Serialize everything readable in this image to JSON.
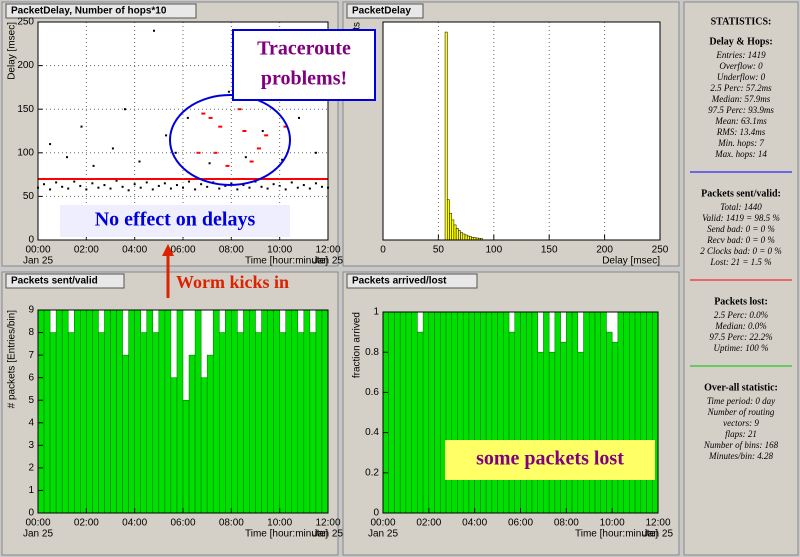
{
  "chart_data": [
    {
      "type": "scatter",
      "title": "PacketDelay, Number of hops*10",
      "x_label": "Time [hour:minute]",
      "y_label": "Delay [msec]",
      "date_label": "Jan 25",
      "xlim": [
        0,
        12
      ],
      "ylim": [
        0,
        250
      ],
      "grid": true,
      "xticks": [
        {
          "value": 0,
          "label": "00:00"
        },
        {
          "value": 2,
          "label": "02:00"
        },
        {
          "value": 4,
          "label": "04:00"
        },
        {
          "value": 6,
          "label": "06:00"
        },
        {
          "value": 8,
          "label": "08:00"
        },
        {
          "value": 10,
          "label": "10:00"
        },
        {
          "value": 12,
          "label": "12:00"
        }
      ],
      "yticks": [
        0,
        50,
        100,
        150,
        200,
        250
      ],
      "series": [
        {
          "style": "points",
          "color": "#000000",
          "x": [
            0,
            0.25,
            0.5,
            0.75,
            1,
            1.25,
            1.5,
            1.75,
            2,
            2.25,
            2.5,
            2.75,
            3,
            3.25,
            3.5,
            3.75,
            4,
            4.25,
            4.5,
            4.75,
            5,
            5.25,
            5.5,
            5.75,
            6,
            6.25,
            6.5,
            6.75,
            7,
            7.25,
            7.5,
            7.75,
            8,
            8.25,
            8.5,
            8.75,
            9,
            9.25,
            9.5,
            9.75,
            10,
            10.25,
            10.5,
            10.75,
            11,
            11.25,
            11.5,
            11.75,
            12,
            0.5,
            1.2,
            1.8,
            2.3,
            3.1,
            3.6,
            4.2,
            4.8,
            5.3,
            5.7,
            6.2,
            7.1,
            7.9,
            8.6,
            9.3,
            10.1,
            10.8,
            11.5
          ],
          "values": [
            60,
            64,
            58,
            66,
            61,
            59,
            67,
            62,
            58,
            65,
            60,
            63,
            59,
            68,
            61,
            57,
            64,
            60,
            66,
            58,
            62,
            65,
            59,
            63,
            60,
            67,
            58,
            64,
            61,
            66,
            59,
            62,
            65,
            58,
            63,
            60,
            67,
            61,
            59,
            64,
            62,
            58,
            66,
            60,
            63,
            59,
            65,
            61,
            60,
            110,
            95,
            130,
            85,
            105,
            150,
            90,
            240,
            120,
            100,
            140,
            88,
            170,
            95,
            125,
            92,
            140,
            100
          ]
        },
        {
          "style": "line",
          "color": "#ff0000",
          "x": [
            0,
            12
          ],
          "values": [
            70,
            70
          ]
        },
        {
          "style": "points",
          "color": "#ff0000",
          "x": [
            6.6,
            6.8,
            7.1,
            7.3,
            7.5,
            7.8,
            8.3,
            8.5,
            8.8,
            9.1,
            9.4,
            10.2
          ],
          "values": [
            100,
            145,
            140,
            100,
            130,
            85,
            150,
            125,
            90,
            105,
            120,
            130
          ]
        }
      ]
    },
    {
      "type": "histogram",
      "title": "PacketDelay",
      "x_label": "Delay [msec]",
      "y_label": "# packets",
      "xlim": [
        0,
        250
      ],
      "ylim": [
        0,
        650
      ],
      "grid": true,
      "color": "#ffff00",
      "xticks": [
        0,
        50,
        100,
        150,
        200,
        250
      ],
      "bins": [
        50,
        52,
        54,
        56,
        58,
        60,
        62,
        64,
        66,
        68,
        70,
        72,
        74,
        76,
        78,
        80,
        82,
        84,
        86,
        88,
        90
      ],
      "values": [
        0,
        0,
        0,
        620,
        120,
        80,
        60,
        45,
        35,
        28,
        22,
        18,
        15,
        12,
        10,
        8,
        7,
        6,
        5,
        4
      ]
    },
    {
      "type": "histogram",
      "title": "Packets sent/valid",
      "x_label": "Time [hour:minute]",
      "y_label": "# packets [Entries/bin]",
      "date_label": "Jan 25",
      "xlim": [
        0,
        12
      ],
      "ylim": [
        0,
        9
      ],
      "grid": false,
      "color": "#00e000",
      "xticks": [
        {
          "value": 0,
          "label": "00:00"
        },
        {
          "value": 2,
          "label": "02:00"
        },
        {
          "value": 4,
          "label": "04:00"
        },
        {
          "value": 6,
          "label": "06:00"
        },
        {
          "value": 8,
          "label": "08:00"
        },
        {
          "value": 10,
          "label": "10:00"
        },
        {
          "value": 12,
          "label": "12:00"
        }
      ],
      "yticks": [
        0,
        1,
        2,
        3,
        4,
        5,
        6,
        7,
        8,
        9
      ],
      "bins": [
        0,
        0.25,
        0.5,
        0.75,
        1,
        1.25,
        1.5,
        1.75,
        2,
        2.25,
        2.5,
        2.75,
        3,
        3.25,
        3.5,
        3.75,
        4,
        4.25,
        4.5,
        4.75,
        5,
        5.25,
        5.5,
        5.75,
        6,
        6.25,
        6.5,
        6.75,
        7,
        7.25,
        7.5,
        7.75,
        8,
        8.25,
        8.5,
        8.75,
        9,
        9.25,
        9.5,
        9.75,
        10,
        10.25,
        10.5,
        10.75,
        11,
        11.25,
        11.5,
        11.75,
        12
      ],
      "values": [
        9,
        9,
        8,
        9,
        9,
        8,
        9,
        9,
        9,
        9,
        8,
        9,
        9,
        9,
        7,
        9,
        9,
        8,
        9,
        8,
        9,
        9,
        6,
        9,
        5,
        7,
        9,
        6,
        7,
        9,
        8,
        9,
        9,
        8,
        9,
        9,
        8,
        9,
        9,
        9,
        8,
        9,
        9,
        8,
        9,
        8,
        9,
        9
      ]
    },
    {
      "type": "histogram",
      "title": "Packets arrived/lost",
      "x_label": "Time [hour:minute]",
      "y_label": "fraction arrived",
      "date_label": "Jan 25",
      "xlim": [
        0,
        12
      ],
      "ylim": [
        0,
        1
      ],
      "grid": false,
      "color": "#00e000",
      "xticks": [
        {
          "value": 0,
          "label": "00:00"
        },
        {
          "value": 2,
          "label": "02:00"
        },
        {
          "value": 4,
          "label": "04:00"
        },
        {
          "value": 6,
          "label": "06:00"
        },
        {
          "value": 8,
          "label": "08:00"
        },
        {
          "value": 10,
          "label": "10:00"
        },
        {
          "value": 12,
          "label": "12:00"
        }
      ],
      "yticks": [
        0,
        0.2,
        0.4,
        0.6,
        0.8,
        1
      ],
      "bins": [
        0,
        0.25,
        0.5,
        0.75,
        1,
        1.25,
        1.5,
        1.75,
        2,
        2.25,
        2.5,
        2.75,
        3,
        3.25,
        3.5,
        3.75,
        4,
        4.25,
        4.5,
        4.75,
        5,
        5.25,
        5.5,
        5.75,
        6,
        6.25,
        6.5,
        6.75,
        7,
        7.25,
        7.5,
        7.75,
        8,
        8.25,
        8.5,
        8.75,
        9,
        9.25,
        9.5,
        9.75,
        10,
        10.25,
        10.5,
        10.75,
        11,
        11.25,
        11.5,
        11.75,
        12
      ],
      "values": [
        1,
        1,
        1,
        1,
        1,
        1,
        0.9,
        1,
        1,
        1,
        1,
        1,
        1,
        1,
        1,
        1,
        1,
        1,
        1,
        1,
        1,
        1,
        0.9,
        1,
        1,
        1,
        1,
        0.8,
        1,
        0.8,
        1,
        0.85,
        1,
        1,
        0.8,
        1,
        1,
        1,
        1,
        0.9,
        0.85,
        1,
        1,
        1,
        1,
        1,
        1,
        1
      ]
    }
  ],
  "annotations": {
    "traceroute": [
      "Traceroute",
      "problems!"
    ],
    "no_effect": "No effect on delays",
    "worm": "Worm kicks in",
    "packets_lost": "some packets lost"
  },
  "statistics": {
    "title": "STATISTICS:",
    "sections": [
      {
        "heading": "Delay & Hops:",
        "separator_color": "#0000ff",
        "lines": [
          "Entries: 1419",
          "Overflow: 0",
          "Underflow: 0",
          "2.5 Perc:   57.2ms",
          "Median:   57.9ms",
          "97.5 Perc:   93.9ms",
          "Mean:   63.1ms",
          "RMS:   13.4ms",
          "Min. hops: 7",
          "Max. hops: 14"
        ]
      },
      {
        "heading": "Packets sent/valid:",
        "separator_color": "#ff0000",
        "lines": [
          "Total: 1440",
          "Valid: 1419 = 98.5 %",
          "Send bad: 0 = 0 %",
          "Recv bad: 0 = 0 %",
          "2 Clocks bad: 0 = 0 %",
          "Lost: 21 = 1.5 %"
        ]
      },
      {
        "heading": "Packets lost:",
        "separator_color": "#00c000",
        "lines": [
          "2.5 Perc:   0.0%",
          "Median:   0.0%",
          "97.5 Perc:   22.2%",
          "Uptime: 100 %"
        ]
      },
      {
        "heading": "Over-all statistic:",
        "lines": [
          "Time period: 0 day",
          "Number of routing",
          "vectors: 9",
          "flaps: 21",
          "Number of bins: 168",
          "Minutes/bin: 4.28"
        ]
      }
    ]
  }
}
